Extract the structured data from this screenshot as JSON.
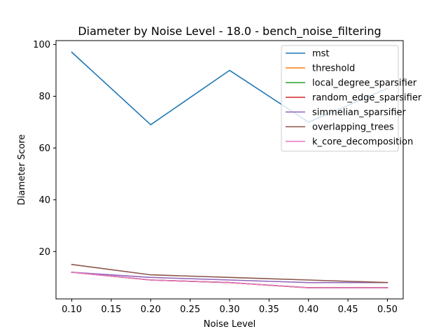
{
  "chart_data": {
    "type": "line",
    "title": "Diameter by Noise Level - 18.0 - bench_noise_filtering",
    "xlabel": "Noise Level",
    "ylabel": "Diameter Score",
    "x": [
      0.1,
      0.2,
      0.3,
      0.4,
      0.5
    ],
    "xlim": [
      0.08,
      0.52
    ],
    "ylim": [
      1.7,
      101.5
    ],
    "xticks": [
      "0.10",
      "0.15",
      "0.20",
      "0.25",
      "0.30",
      "0.35",
      "0.40",
      "0.45",
      "0.50"
    ],
    "yticks": [
      "20",
      "40",
      "60",
      "80",
      "100"
    ],
    "grid": false,
    "legend_position": "upper-right",
    "series": [
      {
        "name": "mst",
        "color": "#1f77b4",
        "values": [
          97,
          69,
          90,
          70,
          83
        ]
      },
      {
        "name": "threshold",
        "color": "#ff7f0e",
        "values": [
          12,
          9,
          8,
          6,
          6
        ]
      },
      {
        "name": "local_degree_sparsifier",
        "color": "#2ca02c",
        "values": [
          12,
          9,
          8,
          6,
          6
        ]
      },
      {
        "name": "random_edge_sparsifier",
        "color": "#d62728",
        "values": [
          12,
          9,
          8,
          6,
          6
        ]
      },
      {
        "name": "simmelian_sparsifier",
        "color": "#9467bd",
        "values": [
          12,
          10,
          9,
          8,
          8
        ]
      },
      {
        "name": "overlapping_trees",
        "color": "#8c564b",
        "values": [
          15,
          11,
          10,
          9,
          8
        ]
      },
      {
        "name": "k_core_decomposition",
        "color": "#e377c2",
        "values": [
          12,
          9,
          8,
          6,
          6
        ]
      }
    ]
  }
}
